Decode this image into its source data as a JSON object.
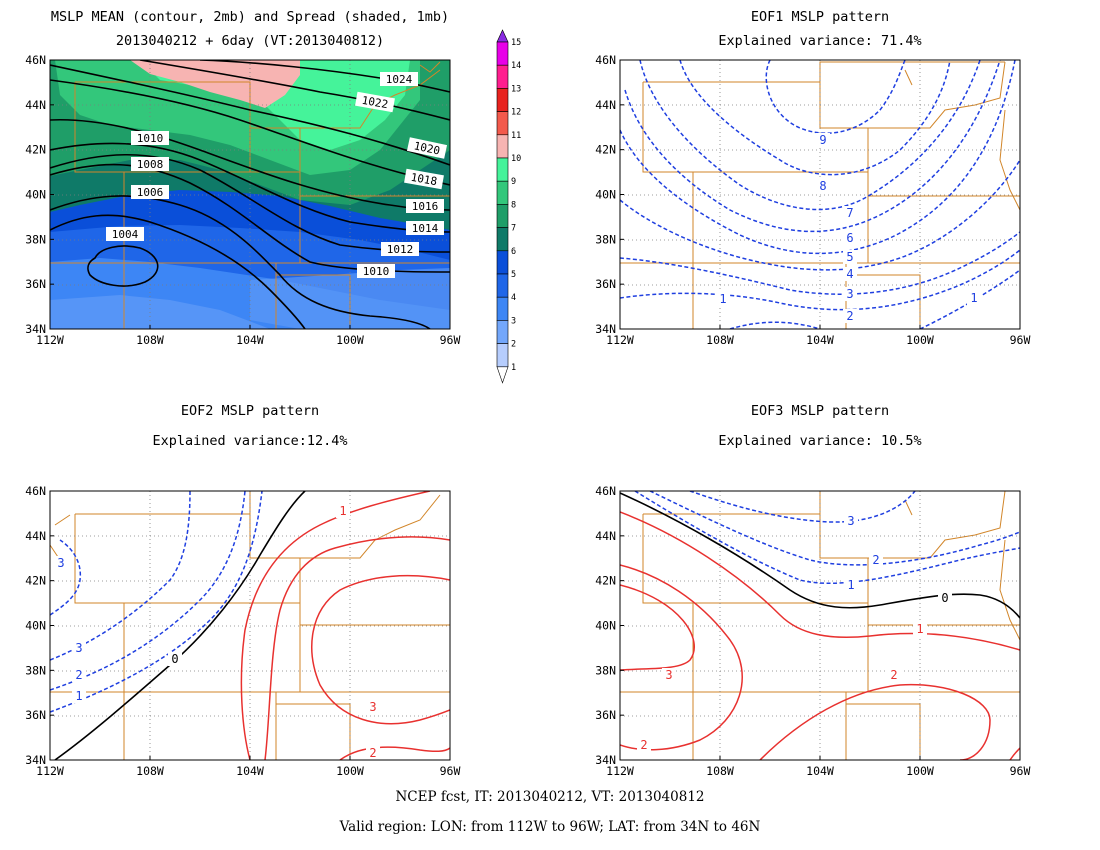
{
  "panels": {
    "mean": {
      "title1": "MSLP MEAN (contour, 2mb) and Spread (shaded, 1mb)",
      "title2": "2013040212 + 6day (VT:2013040812)",
      "contour_labels": [
        "1024",
        "1022",
        "1020",
        "1018",
        "1016",
        "1014",
        "1012",
        "1010",
        "1010",
        "1008",
        "1006",
        "1004"
      ]
    },
    "eof1": {
      "title1": "EOF1 MSLP pattern",
      "title2": "Explained variance: 71.4%",
      "contour_labels": [
        "9",
        "8",
        "7",
        "6",
        "5",
        "4",
        "3",
        "2",
        "1",
        "1"
      ]
    },
    "eof2": {
      "title1": "EOF2 MSLP pattern",
      "title2": "Explained variance:12.4%",
      "contour_labels": [
        "3",
        "3",
        "2",
        "1",
        "0",
        "1",
        "3",
        "2"
      ]
    },
    "eof3": {
      "title1": "EOF3 MSLP pattern",
      "title2": "Explained variance: 10.5%",
      "contour_labels": [
        "3",
        "2",
        "1",
        "0",
        "1",
        "2",
        "3",
        "2"
      ]
    }
  },
  "axes": {
    "lat_labels": [
      "46N",
      "44N",
      "42N",
      "40N",
      "38N",
      "36N",
      "34N"
    ],
    "lon_labels": [
      "112W",
      "108W",
      "104W",
      "100W",
      "96W"
    ]
  },
  "colorbar": {
    "labels": [
      "15",
      "14",
      "13",
      "12",
      "11",
      "10",
      "9",
      "8",
      "7",
      "6",
      "5",
      "4",
      "3",
      "2",
      "1"
    ],
    "colors": [
      "#8a2be2",
      "#e800e8",
      "#ff1f8f",
      "#e8231f",
      "#f35a4c",
      "#f7b4b2",
      "#45f39a",
      "#33c77b",
      "#1f9e68",
      "#0f7a68",
      "#0a4fd9",
      "#1f66e8",
      "#3d86f5",
      "#73a7fb",
      "#b6cdfd"
    ]
  },
  "footer": {
    "line1": "NCEP fcst, IT: 2013040212, VT: 2013040812",
    "line2": "Valid region: LON: from 112W to 96W; LAT: from 34N to 46N"
  },
  "colors": {
    "negative_contour": "#1f3fe0",
    "positive_contour": "#e8312f",
    "zero_contour": "#000000",
    "border": "#d2862a",
    "grid": "#8c8c8c"
  }
}
